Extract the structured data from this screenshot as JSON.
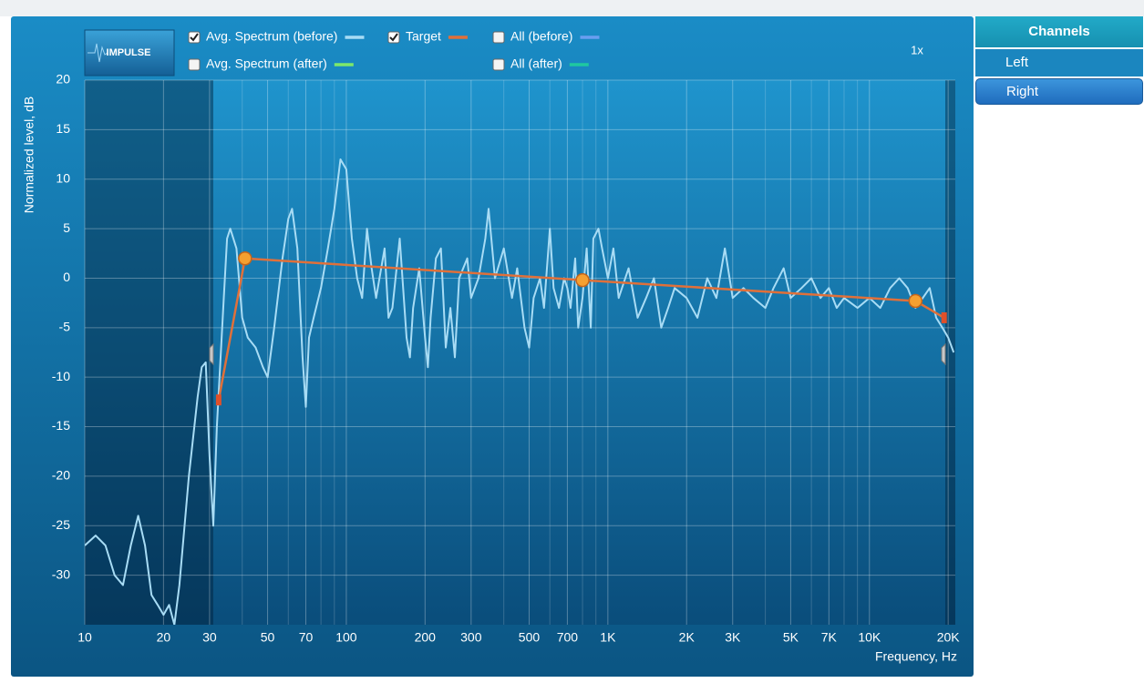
{
  "chart_data": {
    "type": "line",
    "y_label": "Normalized level, dB",
    "x_label": "Frequency, Hz",
    "x_log": true,
    "grid": true,
    "xlim": [
      10,
      21300
    ],
    "ylim": [
      -35,
      20
    ],
    "yticks": [
      20,
      15,
      10,
      5,
      0,
      -5,
      -10,
      -15,
      -20,
      -25,
      -30
    ],
    "xticks": [
      10,
      20,
      30,
      50,
      70,
      100,
      200,
      300,
      500,
      700,
      {
        "value": 1000,
        "label": "1K"
      },
      {
        "value": 2000,
        "label": "2K"
      },
      {
        "value": 3000,
        "label": "3K"
      },
      {
        "value": 5000,
        "label": "5K"
      },
      {
        "value": 7000,
        "label": "7K"
      },
      {
        "value": 10000,
        "label": "10K"
      },
      {
        "value": 20000,
        "label": "20K"
      }
    ],
    "x_minor_grid": [
      40,
      60,
      80,
      90,
      400,
      600,
      800,
      900,
      4000,
      6000,
      8000,
      9000
    ],
    "passband": [
      31,
      19500
    ],
    "series": [
      {
        "name": "Avg. Spectrum (before)",
        "color": "#a8dcf5",
        "checked": true,
        "x": [
          10,
          11,
          12,
          13,
          14,
          15,
          16,
          17,
          18,
          19,
          20,
          21,
          22,
          23,
          25,
          27,
          28,
          29,
          30,
          31,
          32,
          34,
          35,
          36,
          38,
          40,
          42,
          45,
          48,
          50,
          53,
          57,
          60,
          62,
          65,
          68,
          70,
          72,
          75,
          80,
          85,
          90,
          95,
          100,
          105,
          110,
          115,
          120,
          125,
          130,
          140,
          145,
          150,
          160,
          170,
          175,
          180,
          190,
          200,
          205,
          210,
          220,
          230,
          240,
          250,
          260,
          270,
          290,
          300,
          320,
          340,
          350,
          370,
          400,
          430,
          450,
          480,
          500,
          520,
          550,
          570,
          600,
          620,
          650,
          680,
          700,
          720,
          750,
          770,
          800,
          830,
          860,
          880,
          920,
          950,
          1000,
          1050,
          1100,
          1200,
          1300,
          1400,
          1500,
          1600,
          1700,
          1800,
          2000,
          2200,
          2400,
          2600,
          2800,
          3000,
          3300,
          3600,
          4000,
          4300,
          4700,
          5000,
          5500,
          6000,
          6500,
          7000,
          7500,
          8000,
          9000,
          10000,
          11000,
          12000,
          13000,
          14000,
          15000,
          16000,
          17000,
          18000,
          19000,
          20000,
          21000
        ],
        "values": [
          -27,
          -26,
          -27,
          -30,
          -31,
          -27,
          -24,
          -27,
          -32,
          -33,
          -34,
          -33,
          -35,
          -31,
          -20,
          -12,
          -9,
          -8.5,
          -18,
          -25,
          -15,
          -2,
          4,
          5,
          3,
          -4,
          -6,
          -7,
          -9,
          -10,
          -5,
          2,
          6,
          7,
          3,
          -8,
          -13,
          -6,
          -4,
          -1,
          3,
          7,
          12,
          11,
          4,
          0,
          -2,
          5,
          1,
          -2,
          3,
          -4,
          -3,
          4,
          -6,
          -8,
          -3,
          1,
          -6,
          -9,
          -4,
          2,
          3,
          -7,
          -3,
          -8,
          0,
          2,
          -2,
          0,
          4,
          7,
          0,
          3,
          -2,
          1,
          -5,
          -7,
          -2,
          0,
          -3,
          5,
          -1,
          -3,
          0,
          -1,
          -3,
          2,
          -5,
          -2,
          3,
          -5,
          4,
          5,
          3,
          0,
          3,
          -2,
          1,
          -4,
          -2,
          0,
          -5,
          -3,
          -1,
          -2,
          -4,
          0,
          -2,
          3,
          -2,
          -1,
          -2,
          -3,
          -1,
          1,
          -2,
          -1,
          0,
          -2,
          -1,
          -3,
          -2,
          -3,
          -2,
          -3,
          -1,
          0,
          -1,
          -3,
          -2,
          -1,
          -4,
          -5,
          -6,
          -7.5
        ]
      },
      {
        "name": "Target",
        "color": "#e0703a",
        "checked": true,
        "x": [
          32.5,
          41,
          800,
          15000,
          19300
        ],
        "values": [
          -12.3,
          2,
          -0.2,
          -2.3,
          -4
        ]
      }
    ],
    "extra_legend": [
      {
        "name": "All (before)",
        "color": "#6a9ef0",
        "checked": false
      },
      {
        "name": "Avg. Spectrum (after)",
        "color": "#7de86a",
        "checked": false
      },
      {
        "name": "All (after)",
        "color": "#1fc8a0",
        "checked": false
      }
    ]
  },
  "toolbar": {
    "impulse_button": "IMPULSE",
    "zoom": "1x"
  },
  "channels": {
    "title": "Channels",
    "items": [
      "Left",
      "Right"
    ],
    "selected": 1
  }
}
